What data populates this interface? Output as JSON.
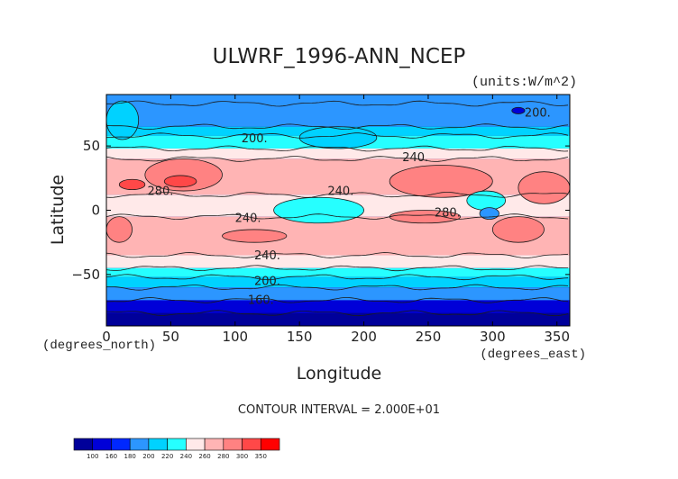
{
  "chart_data": {
    "type": "heatmap",
    "title": "ULWRF_1996-ANN_NCEP",
    "units_label": "(units:W/m^2)",
    "xlabel": "Longitude",
    "ylabel": "Latitude",
    "x_unit_label": "(degrees_east)",
    "y_unit_label": "(degrees_north)",
    "xlim": [
      0,
      360
    ],
    "ylim": [
      -90,
      90
    ],
    "x_ticks": [
      0,
      50,
      100,
      150,
      200,
      250,
      300,
      350
    ],
    "y_ticks": [
      50,
      0,
      -50
    ],
    "contour_interval_text": "CONTOUR INTERVAL = 2.000E+01",
    "colorbar": {
      "levels": [
        "100",
        "160",
        "180",
        "200",
        "220",
        "240",
        "260",
        "280",
        "300",
        "350"
      ],
      "colors": [
        "#00009a",
        "#0000d8",
        "#0028ff",
        "#2c96ff",
        "#00d2ff",
        "#26ffff",
        "#ffe9e9",
        "#ffb4b4",
        "#ff8282",
        "#ff4848",
        "#ff0000"
      ]
    },
    "zonal_band_levels": [
      {
        "lat_from": 90,
        "lat_to": 83,
        "band": 3
      },
      {
        "lat_from": 83,
        "lat_to": 65,
        "band": 3
      },
      {
        "lat_from": 65,
        "lat_to": 58,
        "band": 4
      },
      {
        "lat_from": 58,
        "lat_to": 48,
        "band": 5
      },
      {
        "lat_from": 48,
        "lat_to": 40,
        "band": 6
      },
      {
        "lat_from": 40,
        "lat_to": 12,
        "band": 7
      },
      {
        "lat_from": 12,
        "lat_to": -5,
        "band": 6
      },
      {
        "lat_from": -5,
        "lat_to": -35,
        "band": 7
      },
      {
        "lat_from": -35,
        "lat_to": -45,
        "band": 6
      },
      {
        "lat_from": -45,
        "lat_to": -52,
        "band": 5
      },
      {
        "lat_from": -52,
        "lat_to": -60,
        "band": 4
      },
      {
        "lat_from": -60,
        "lat_to": -70,
        "band": 3
      },
      {
        "lat_from": -70,
        "lat_to": -80,
        "band": 1
      },
      {
        "lat_from": -80,
        "lat_to": -90,
        "band": 0
      }
    ],
    "features": [
      {
        "lon": [
          30,
          90
        ],
        "lat": [
          15,
          40
        ],
        "band": 8
      },
      {
        "lon": [
          45,
          70
        ],
        "lat": [
          18,
          27
        ],
        "band": 9
      },
      {
        "lon": [
          10,
          30
        ],
        "lat": [
          16,
          24
        ],
        "band": 9
      },
      {
        "lon": [
          220,
          300
        ],
        "lat": [
          10,
          35
        ],
        "band": 8
      },
      {
        "lon": [
          320,
          360
        ],
        "lat": [
          5,
          30
        ],
        "band": 8
      },
      {
        "lon": [
          130,
          200
        ],
        "lat": [
          -10,
          10
        ],
        "band": 5
      },
      {
        "lon": [
          280,
          310
        ],
        "lat": [
          0,
          15
        ],
        "band": 5
      },
      {
        "lon": [
          290,
          305
        ],
        "lat": [
          -7,
          2
        ],
        "band": 3
      },
      {
        "lon": [
          220,
          275
        ],
        "lat": [
          -10,
          0
        ],
        "band": 8
      },
      {
        "lon": [
          90,
          140
        ],
        "lat": [
          -25,
          -15
        ],
        "band": 8
      },
      {
        "lon": [
          300,
          340
        ],
        "lat": [
          -25,
          -5
        ],
        "band": 8
      },
      {
        "lon": [
          0,
          20
        ],
        "lat": [
          -25,
          -5
        ],
        "band": 8
      },
      {
        "lon": [
          0,
          25
        ],
        "lat": [
          55,
          85
        ],
        "band": 4
      },
      {
        "lon": [
          150,
          210
        ],
        "lat": [
          48,
          65
        ],
        "band": 4
      },
      {
        "lon": [
          315,
          325
        ],
        "lat": [
          75,
          80
        ],
        "band": 1
      }
    ],
    "contour_labels": [
      {
        "text": "200.",
        "lon": 115,
        "lat": 53
      },
      {
        "text": "240.",
        "lon": 240,
        "lat": 38
      },
      {
        "text": "280.",
        "lon": 42,
        "lat": 12
      },
      {
        "text": "240.",
        "lon": 182,
        "lat": 12
      },
      {
        "text": "240.",
        "lon": 110,
        "lat": -9
      },
      {
        "text": "280.",
        "lon": 265,
        "lat": -5
      },
      {
        "text": "240.",
        "lon": 125,
        "lat": -38
      },
      {
        "text": "200.",
        "lon": 125,
        "lat": -58
      },
      {
        "text": "160.",
        "lon": 120,
        "lat": -73
      },
      {
        "text": "200.",
        "lon": 335,
        "lat": 73
      }
    ]
  }
}
